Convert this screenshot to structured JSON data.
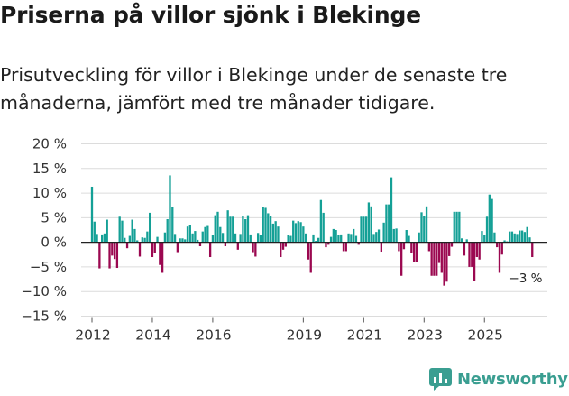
{
  "header": {
    "title": "Priserna på villor sjönk i Blekinge",
    "subtitle": "Prisutveckling för villor i Blekinge under de senaste tre månaderna, jämfört med tre månader tidigare."
  },
  "brand": {
    "name": "Newsworthy"
  },
  "colors": {
    "positive": "#14a096",
    "negative": "#9b0850",
    "grid": "#dcdcdc",
    "zero": "#222222"
  },
  "chart_data": {
    "type": "bar",
    "title": "Priserna på villor sjönk i Blekinge",
    "subtitle": "Prisutveckling för villor i Blekinge under de senaste tre månaderna, jämfört med tre månader tidigare.",
    "unit": "%",
    "xlabel": "",
    "ylabel": "",
    "ylim": [
      -15,
      20
    ],
    "yticks": [
      20,
      15,
      10,
      5,
      0,
      -5,
      -10,
      -15
    ],
    "ytick_labels": [
      "20 %",
      "15 %",
      "10 %",
      "5 %",
      "0 %",
      "−5 %",
      "−10 %",
      "−15 %"
    ],
    "start_year": 2012,
    "start_month": 1,
    "xtick_labels": [
      "2012",
      "2014",
      "2016",
      "2019",
      "2021",
      "2023",
      "2025"
    ],
    "xtick_years": [
      2012,
      2014,
      2016,
      2019,
      2021,
      2023,
      2025
    ],
    "annotation": {
      "text": "−3 %",
      "value": -3
    },
    "values": [
      11.3,
      4.2,
      1.7,
      -5.3,
      1.6,
      1.8,
      4.6,
      -5.3,
      -2.7,
      -3.4,
      -5.2,
      5.2,
      4.4,
      0.9,
      -1.2,
      1.3,
      4.6,
      2.7,
      0.4,
      -2.9,
      1.0,
      0.9,
      2.2,
      6.0,
      -3.0,
      -2.2,
      1.1,
      -4.6,
      -6.2,
      2.0,
      4.7,
      13.6,
      7.2,
      1.7,
      -2.0,
      0.8,
      0.8,
      0.6,
      3.2,
      3.6,
      1.8,
      2.3,
      0.5,
      -0.8,
      2.2,
      3.1,
      3.5,
      -3.0,
      1.5,
      5.5,
      6.2,
      3.1,
      1.9,
      -0.8,
      6.5,
      5.2,
      5.2,
      1.8,
      -1.5,
      1.7,
      5.3,
      4.7,
      5.5,
      1.6,
      -2.0,
      -2.9,
      1.9,
      1.5,
      7.1,
      7.0,
      5.9,
      5.4,
      3.8,
      4.3,
      3.2,
      -3.0,
      -1.5,
      -0.9,
      1.5,
      1.3,
      4.4,
      3.9,
      4.3,
      4.1,
      3.2,
      1.8,
      -3.5,
      -6.2,
      1.6,
      0.3,
      0.9,
      8.6,
      6.0,
      -1.0,
      -0.5,
      1.1,
      2.7,
      2.5,
      1.5,
      1.6,
      -1.8,
      -1.8,
      1.8,
      1.7,
      2.7,
      1.3,
      -0.5,
      5.2,
      5.2,
      5.2,
      8.1,
      7.3,
      1.7,
      2.1,
      2.6,
      -1.9,
      4.0,
      7.7,
      7.7,
      13.2,
      2.7,
      2.8,
      -1.8,
      -6.8,
      -1.4,
      2.5,
      1.3,
      -2.2,
      -4.0,
      -4.0,
      2.0,
      6.1,
      5.3,
      7.3,
      -1.8,
      -6.8,
      -6.8,
      -6.8,
      -4.2,
      -6.2,
      -8.8,
      -8.0,
      -2.8,
      -0.9,
      6.2,
      6.2,
      6.2,
      0.8,
      -2.7,
      0.6,
      -5.0,
      -5.0,
      -7.9,
      -3.0,
      -3.5,
      2.3,
      1.4,
      5.2,
      9.7,
      8.8,
      2.0,
      -1.0,
      -6.2,
      -2.5,
      0.4,
      0.2,
      2.2,
      2.2,
      1.8,
      1.7,
      2.4,
      2.4,
      2.1,
      3.1,
      1.0,
      -3.0
    ]
  }
}
